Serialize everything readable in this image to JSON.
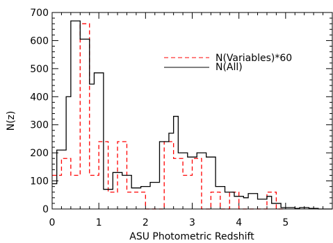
{
  "chart_data": {
    "type": "histogram-step",
    "title": "",
    "xlabel": "ASU Photometric Redshift",
    "ylabel": "N(z)",
    "xlim": [
      0,
      6
    ],
    "ylim": [
      0,
      700
    ],
    "x_ticks": [
      0,
      1,
      2,
      3,
      4,
      5,
      6
    ],
    "y_ticks": [
      0,
      100,
      200,
      300,
      400,
      500,
      600,
      700
    ],
    "x_tick_labels": [
      "0",
      "1",
      "2",
      "3",
      "4",
      "5",
      ""
    ],
    "y_tick_labels": [
      "0",
      "100",
      "200",
      "300",
      "400",
      "500",
      "600",
      "700"
    ],
    "x_minor_step": 0.2,
    "y_minor_step": 20,
    "grid": false,
    "legend_position": "top-right",
    "bin_width": 0.2,
    "series": [
      {
        "name": "N(Variables)*60",
        "color": "#ff0000",
        "style": "dashed",
        "bin_starts": [
          0.0,
          0.2,
          0.4,
          0.6,
          0.8,
          1.0,
          1.2,
          1.4,
          1.6,
          1.8,
          2.0,
          2.2,
          2.4,
          2.6,
          2.8,
          3.0,
          3.2,
          3.4,
          3.6,
          3.8,
          4.0,
          4.2,
          4.4,
          4.6,
          4.8
        ],
        "values": [
          120,
          180,
          120,
          660,
          120,
          240,
          60,
          240,
          60,
          60,
          0,
          0,
          240,
          180,
          120,
          180,
          0,
          60,
          0,
          60,
          0,
          0,
          0,
          60,
          0
        ]
      },
      {
        "name": "N(All)",
        "color": "#000000",
        "style": "solid",
        "bin_starts": [
          0.0,
          0.1,
          0.2,
          0.3,
          0.4,
          0.5,
          0.6,
          0.7,
          0.8,
          0.9,
          1.0,
          1.1,
          1.2,
          1.3,
          1.4,
          1.5,
          1.6,
          1.7,
          1.8,
          1.9,
          2.0,
          2.1,
          2.2,
          2.3,
          2.4,
          2.5,
          2.6,
          2.7,
          2.8,
          2.9,
          3.0,
          3.1,
          3.2,
          3.3,
          3.4,
          3.5,
          3.6,
          3.7,
          3.8,
          3.9,
          4.0,
          4.1,
          4.2,
          4.3,
          4.4,
          4.5,
          4.6,
          4.7,
          4.8,
          4.9,
          5.0,
          5.1,
          5.2,
          5.3,
          5.4,
          5.5,
          5.6,
          5.7,
          5.8,
          5.9
        ],
        "values": [
          90,
          210,
          210,
          400,
          670,
          670,
          605,
          605,
          445,
          485,
          485,
          70,
          70,
          130,
          130,
          120,
          120,
          75,
          75,
          80,
          80,
          95,
          95,
          240,
          240,
          270,
          330,
          200,
          200,
          185,
          185,
          200,
          200,
          185,
          185,
          80,
          80,
          60,
          60,
          45,
          45,
          40,
          55,
          55,
          35,
          35,
          45,
          20,
          20,
          5,
          5,
          5,
          2,
          5,
          5,
          2,
          2,
          0,
          0,
          0
        ]
      }
    ]
  }
}
